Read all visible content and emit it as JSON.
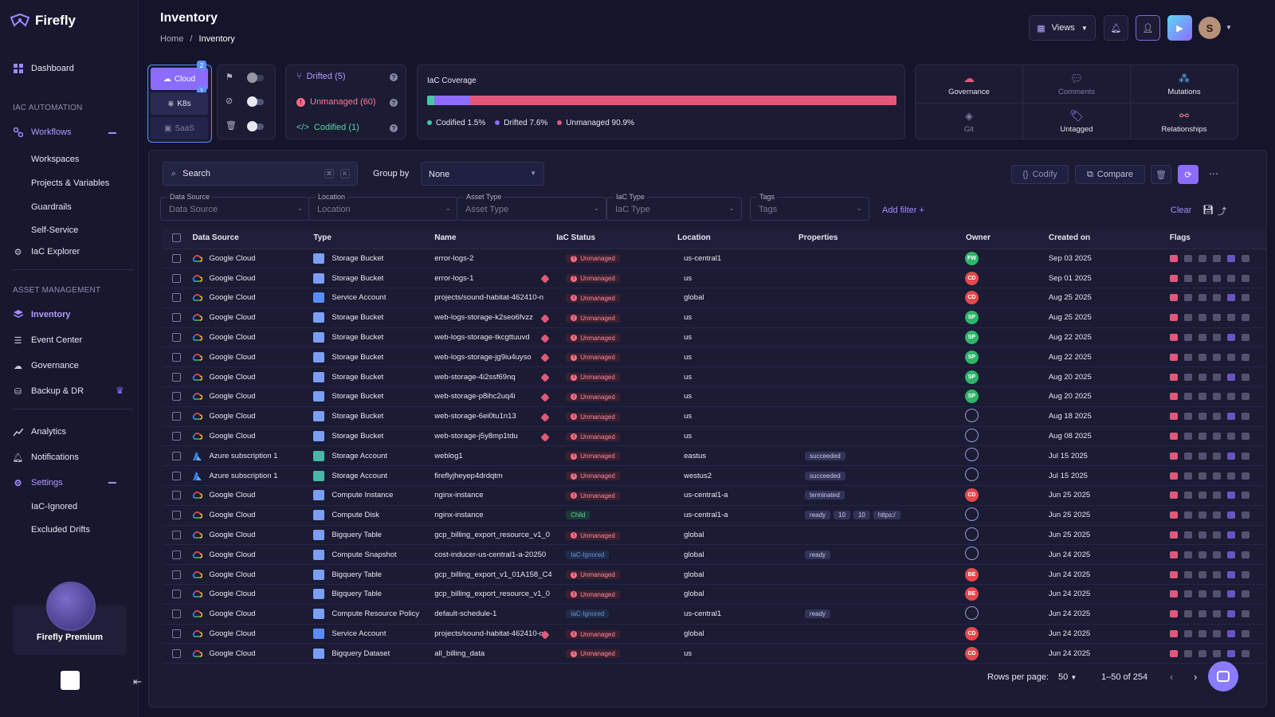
{
  "app": {
    "name": "Firefly"
  },
  "sidebar": {
    "dashboard": "Dashboard",
    "section_iac": "IAC AUTOMATION",
    "workflows": "Workflows",
    "workflows_sub": [
      "Workspaces",
      "Projects & Variables",
      "Guardrails",
      "Self-Service"
    ],
    "iac_explorer": "IaC Explorer",
    "section_asset": "ASSET MANAGEMENT",
    "inventory": "Inventory",
    "event_center": "Event Center",
    "governance": "Governance",
    "backup": "Backup & DR",
    "analytics": "Analytics",
    "notifications": "Notifications",
    "settings": "Settings",
    "settings_sub": [
      "IaC-Ignored",
      "Excluded Drifts"
    ],
    "premium": "Firefly Premium"
  },
  "header": {
    "title": "Inventory",
    "breadcrumb_home": "Home",
    "breadcrumb_sep": "/",
    "breadcrumb_current": "Inventory",
    "views_label": "Views",
    "avatar_initial": "S"
  },
  "sources": {
    "cloud": "Cloud",
    "cloud_count": "2",
    "cloud_count2": "1",
    "k8s": "K8s",
    "saas": "SaaS"
  },
  "status_panel": {
    "drifted": "Drifted (5)",
    "unmanaged": "Unmanaged (60)",
    "codified": "Codified (1)"
  },
  "coverage": {
    "title": "IaC Coverage",
    "codified_pct": 1.5,
    "drifted_pct": 7.6,
    "unmanaged_pct": 90.9,
    "legend_codified": "Codified 1.5%",
    "legend_drifted": "Drifted 7.6%",
    "legend_unmanaged": "Unmanaged 90.9%",
    "colors": {
      "codified": "#45c9a4",
      "drifted": "#8f6cff",
      "unmanaged": "#e2587a"
    }
  },
  "quick_actions": [
    "Governance",
    "Comments",
    "Mutations",
    "Git",
    "Untagged",
    "Relationships"
  ],
  "toolbar": {
    "search_placeholder": "Search",
    "kbd1": "⌘",
    "kbd2": "K",
    "group_by_label": "Group by",
    "group_by_value": "None",
    "codify": "Codify",
    "compare": "Compare"
  },
  "filters": {
    "data_source": {
      "label": "Data Source",
      "placeholder": "Data Source"
    },
    "location": {
      "label": "Location",
      "placeholder": "Location"
    },
    "asset_type": {
      "label": "Asset Type",
      "placeholder": "Asset Type"
    },
    "iac_type": {
      "label": "IaC Type",
      "placeholder": "IaC Type"
    },
    "tags": {
      "label": "Tags",
      "placeholder": "Tags"
    },
    "add_filter": "Add filter +",
    "clear": "Clear"
  },
  "table": {
    "columns": [
      "Data Source",
      "Type",
      "Name",
      "IaC Status",
      "Location",
      "Properties",
      "Owner",
      "Created on",
      "Flags"
    ],
    "rows": [
      {
        "ds": "Google Cloud",
        "type": "Storage Bucket",
        "name": "error-logs-2",
        "drift": false,
        "status": "Unmanaged",
        "loc": "us-central1",
        "props": [],
        "owner": "FW",
        "owner_color": "#2fb56a",
        "created": "Sep 03 2025"
      },
      {
        "ds": "Google Cloud",
        "type": "Storage Bucket",
        "name": "error-logs-1",
        "drift": true,
        "status": "Unmanaged",
        "loc": "us",
        "props": [],
        "owner": "CD",
        "owner_color": "#e5484d",
        "created": "Sep 01 2025"
      },
      {
        "ds": "Google Cloud",
        "type": "Service Account",
        "name": "projects/sound-habitat-462410-n",
        "drift": false,
        "status": "Unmanaged",
        "loc": "global",
        "props": [],
        "owner": "CD",
        "owner_color": "#e5484d",
        "created": "Aug 25 2025"
      },
      {
        "ds": "Google Cloud",
        "type": "Storage Bucket",
        "name": "web-logs-storage-k2seo6fvzz",
        "drift": true,
        "status": "Unmanaged",
        "loc": "us",
        "props": [],
        "owner": "SP",
        "owner_color": "#2fb56a",
        "created": "Aug 25 2025"
      },
      {
        "ds": "Google Cloud",
        "type": "Storage Bucket",
        "name": "web-logs-storage-tkcgttuuvd",
        "drift": true,
        "status": "Unmanaged",
        "loc": "us",
        "props": [],
        "owner": "SP",
        "owner_color": "#2fb56a",
        "created": "Aug 22 2025"
      },
      {
        "ds": "Google Cloud",
        "type": "Storage Bucket",
        "name": "web-logs-storage-jg9iu4uyso",
        "drift": true,
        "status": "Unmanaged",
        "loc": "us",
        "props": [],
        "owner": "SP",
        "owner_color": "#2fb56a",
        "created": "Aug 22 2025"
      },
      {
        "ds": "Google Cloud",
        "type": "Storage Bucket",
        "name": "web-storage-4i2ssf69nq",
        "drift": true,
        "status": "Unmanaged",
        "loc": "us",
        "props": [],
        "owner": "SP",
        "owner_color": "#2fb56a",
        "created": "Aug 20 2025"
      },
      {
        "ds": "Google Cloud",
        "type": "Storage Bucket",
        "name": "web-storage-p8ihc2uq4i",
        "drift": true,
        "status": "Unmanaged",
        "loc": "us",
        "props": [],
        "owner": "SP",
        "owner_color": "#2fb56a",
        "created": "Aug 20 2025"
      },
      {
        "ds": "Google Cloud",
        "type": "Storage Bucket",
        "name": "web-storage-6ei0tu1n13",
        "drift": true,
        "status": "Unmanaged",
        "loc": "us",
        "props": [],
        "owner": "",
        "owner_color": "",
        "created": "Aug 18 2025"
      },
      {
        "ds": "Google Cloud",
        "type": "Storage Bucket",
        "name": "web-storage-j5y8mp1tdu",
        "drift": true,
        "status": "Unmanaged",
        "loc": "us",
        "props": [],
        "owner": "",
        "owner_color": "",
        "created": "Aug 08 2025"
      },
      {
        "ds": "Azure subscription 1",
        "type": "Storage Account",
        "name": "weblog1",
        "drift": false,
        "status": "Unmanaged",
        "loc": "eastus",
        "props": [
          "succeeded"
        ],
        "owner": "",
        "owner_color": "",
        "created": "Jul 15 2025"
      },
      {
        "ds": "Azure subscription 1",
        "type": "Storage Account",
        "name": "fireflyjheyep4drdqtm",
        "drift": false,
        "status": "Unmanaged",
        "loc": "westus2",
        "props": [
          "succeeded"
        ],
        "owner": "",
        "owner_color": "",
        "created": "Jul 15 2025"
      },
      {
        "ds": "Google Cloud",
        "type": "Compute Instance",
        "name": "nginx-instance",
        "drift": false,
        "status": "Unmanaged",
        "loc": "us-central1-a",
        "props": [
          "terminated"
        ],
        "owner": "CD",
        "owner_color": "#e5484d",
        "created": "Jun 25 2025"
      },
      {
        "ds": "Google Cloud",
        "type": "Compute Disk",
        "name": "nginx-instance",
        "drift": false,
        "status": "Child",
        "loc": "us-central1-a",
        "props": [
          "ready",
          "10",
          "10",
          "https:/"
        ],
        "owner": "",
        "owner_color": "",
        "created": "Jun 25 2025"
      },
      {
        "ds": "Google Cloud",
        "type": "Bigquery Table",
        "name": "gcp_billing_export_resource_v1_0",
        "drift": false,
        "status": "Unmanaged",
        "loc": "global",
        "props": [],
        "owner": "",
        "owner_color": "",
        "created": "Jun 25 2025"
      },
      {
        "ds": "Google Cloud",
        "type": "Compute Snapshot",
        "name": "cost-inducer-us-central1-a-20250",
        "drift": false,
        "status": "IaC-Ignored",
        "loc": "global",
        "props": [
          "ready"
        ],
        "owner": "",
        "owner_color": "",
        "created": "Jun 24 2025"
      },
      {
        "ds": "Google Cloud",
        "type": "Bigquery Table",
        "name": "gcp_billing_export_v1_01A158_C4",
        "drift": false,
        "status": "Unmanaged",
        "loc": "global",
        "props": [],
        "owner": "BE",
        "owner_color": "#e5484d",
        "created": "Jun 24 2025"
      },
      {
        "ds": "Google Cloud",
        "type": "Bigquery Table",
        "name": "gcp_billing_export_resource_v1_0",
        "drift": false,
        "status": "Unmanaged",
        "loc": "global",
        "props": [],
        "owner": "BE",
        "owner_color": "#e5484d",
        "created": "Jun 24 2025"
      },
      {
        "ds": "Google Cloud",
        "type": "Compute Resource Policy",
        "name": "default-schedule-1",
        "drift": false,
        "status": "IaC-Ignored",
        "loc": "us-central1",
        "props": [
          "ready"
        ],
        "owner": "",
        "owner_color": "",
        "created": "Jun 24 2025"
      },
      {
        "ds": "Google Cloud",
        "type": "Service Account",
        "name": "projects/sound-habitat-462410-n",
        "drift": true,
        "status": "Unmanaged",
        "loc": "global",
        "props": [],
        "owner": "CD",
        "owner_color": "#e5484d",
        "created": "Jun 24 2025"
      },
      {
        "ds": "Google Cloud",
        "type": "Bigquery Dataset",
        "name": "all_billing_data",
        "drift": false,
        "status": "Unmanaged",
        "loc": "us",
        "props": [],
        "owner": "CD",
        "owner_color": "#e5484d",
        "created": "Jun 24 2025"
      }
    ]
  },
  "pagination": {
    "rows_per_page_label": "Rows per page:",
    "rows_per_page": "50",
    "range": "1–50 of 254"
  }
}
